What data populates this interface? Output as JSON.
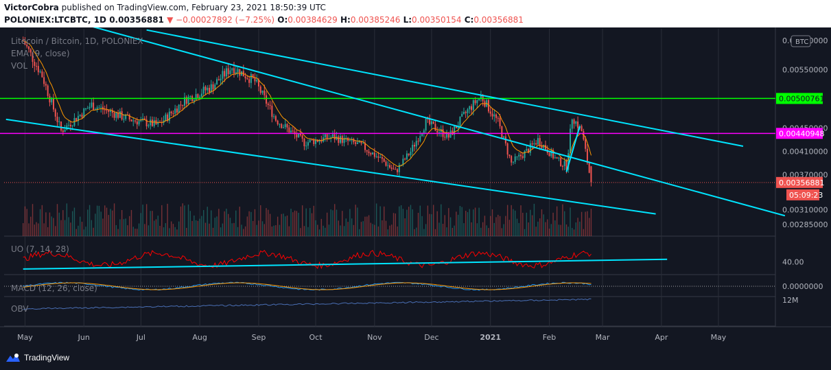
{
  "header": {
    "user": "VictorCobra",
    "published": " published on TradingView.com, February 23, 2021 18:50:39 UTC",
    "symbol": "POLONIEX:LTCBTC, 1D",
    "last": "0.00356881",
    "change": "▼ −0.00027892 (−7.25%)",
    "o_label": "O:",
    "o_value": "0.00384629",
    "h_label": "H:",
    "h_value": "0.00385246",
    "l_label": "L:",
    "l_value": "0.00350154",
    "c_label": "C:",
    "c_value": "0.00356881"
  },
  "footer": {
    "brand": "TradingView"
  },
  "colors": {
    "background": "#131722",
    "up": "#26a69a",
    "down": "#ef5350",
    "channel": "#00e5ff",
    "hline_green": "#00ff00",
    "hline_magenta": "#ff00ff",
    "ema": "#ff9800",
    "uo": "#ff0000",
    "macd": "#2196f3",
    "signal": "#ff9800",
    "obv": "#4a6fb5"
  },
  "chart_data": {
    "type": "candlestick",
    "title": "Litecoin / Bitcoin, 1D, POLONIEX",
    "legend": [
      "EMA (9, close)",
      "VOL"
    ],
    "currency_badge": "BTC",
    "x_ticks": [
      "May",
      "Jun",
      "Jul",
      "Aug",
      "Sep",
      "Oct",
      "Nov",
      "Dec",
      "2021",
      "Feb",
      "Mar",
      "Apr",
      "May"
    ],
    "y_ticks": [
      "0.00600000",
      "0.00550000",
      "0.00450000",
      "0.00410000",
      "0.00370000",
      "0.00310000",
      "0.00285000"
    ],
    "ylim": [
      0.00265,
      0.0062
    ],
    "price_levels": [
      {
        "name": "green-level",
        "value": 0.00500761,
        "label": "0.00500761",
        "color": "#00ff00"
      },
      {
        "name": "magenta-level",
        "value": 0.00440948,
        "label": "0.00440948",
        "color": "#ff00ff"
      }
    ],
    "last_price": {
      "value": 0.00356881,
      "label": "0.00356881",
      "countdown": "05:09:23"
    },
    "price_anchors": [
      {
        "date": "2020-04-30",
        "close": 0.006
      },
      {
        "date": "2020-05-10",
        "close": 0.0054
      },
      {
        "date": "2020-05-20",
        "close": 0.00445
      },
      {
        "date": "2020-06-05",
        "close": 0.0049
      },
      {
        "date": "2020-06-25",
        "close": 0.00465
      },
      {
        "date": "2020-07-10",
        "close": 0.00455
      },
      {
        "date": "2020-07-25",
        "close": 0.005
      },
      {
        "date": "2020-08-07",
        "close": 0.0052
      },
      {
        "date": "2020-08-18",
        "close": 0.00555
      },
      {
        "date": "2020-08-30",
        "close": 0.0053
      },
      {
        "date": "2020-09-10",
        "close": 0.00465
      },
      {
        "date": "2020-09-25",
        "close": 0.00425
      },
      {
        "date": "2020-10-10",
        "close": 0.00435
      },
      {
        "date": "2020-10-25",
        "close": 0.0042
      },
      {
        "date": "2020-11-05",
        "close": 0.00395
      },
      {
        "date": "2020-11-12",
        "close": 0.00375
      },
      {
        "date": "2020-11-20",
        "close": 0.0041
      },
      {
        "date": "2020-11-28",
        "close": 0.0046
      },
      {
        "date": "2020-12-10",
        "close": 0.00435
      },
      {
        "date": "2020-12-20",
        "close": 0.0048
      },
      {
        "date": "2020-12-27",
        "close": 0.00505
      },
      {
        "date": "2021-01-05",
        "close": 0.0046
      },
      {
        "date": "2021-01-12",
        "close": 0.0039
      },
      {
        "date": "2021-01-20",
        "close": 0.0041
      },
      {
        "date": "2021-01-26",
        "close": 0.0043
      },
      {
        "date": "2021-02-05",
        "close": 0.00395
      },
      {
        "date": "2021-02-10",
        "close": 0.00385
      },
      {
        "date": "2021-02-13",
        "close": 0.0047
      },
      {
        "date": "2021-02-18",
        "close": 0.00445
      },
      {
        "date": "2021-02-23",
        "close": 0.00356881
      }
    ],
    "channels": [
      {
        "name": "upper-channel",
        "from": [
          "2020-07-04",
          0.00618
        ],
        "to": [
          "2021-05-14",
          0.00419
        ]
      },
      {
        "name": "middle-channel",
        "from": [
          "2020-05-26",
          0.00633
        ],
        "to": [
          "2021-06-05",
          0.003
        ]
      },
      {
        "name": "lower-channel",
        "from": [
          "2020-04-21",
          0.00465
        ],
        "to": [
          "2021-03-29",
          0.00303
        ]
      },
      {
        "name": "breakout-line",
        "from": [
          "2021-02-10",
          0.00375
        ],
        "to": [
          "2021-02-17",
          0.00453
        ]
      }
    ],
    "indicators": {
      "uo": {
        "label": "UO (7, 14, 28)",
        "tick": "40.00",
        "trend_from": [
          "2020-04-30",
          28
        ],
        "trend_to": [
          "2021-04-04",
          44
        ]
      },
      "macd": {
        "label": "MACD (12, 26, close)",
        "tick": "0.0000000"
      },
      "obv": {
        "label": "OBV",
        "tick": "12M"
      }
    }
  }
}
